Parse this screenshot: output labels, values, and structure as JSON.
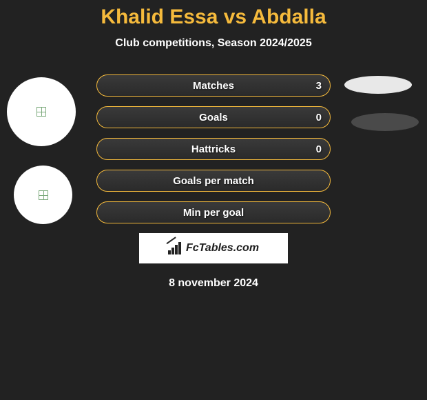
{
  "title": "Khalid Essa vs Abdalla",
  "subtitle": "Club competitions, Season 2024/2025",
  "date_text": "8 november 2024",
  "brand_text": "FcTables.com",
  "colors": {
    "background": "#222222",
    "accent": "#f5ba3c",
    "text": "#ffffff",
    "avatar_bg": "#ffffff",
    "blob_light": "#e8e8e8",
    "blob_dark": "#4a4a4a"
  },
  "stats": [
    {
      "label": "Matches",
      "value": "3"
    },
    {
      "label": "Goals",
      "value": "0"
    },
    {
      "label": "Hattricks",
      "value": "0"
    },
    {
      "label": "Goals per match",
      "value": ""
    },
    {
      "label": "Min per goal",
      "value": ""
    }
  ]
}
